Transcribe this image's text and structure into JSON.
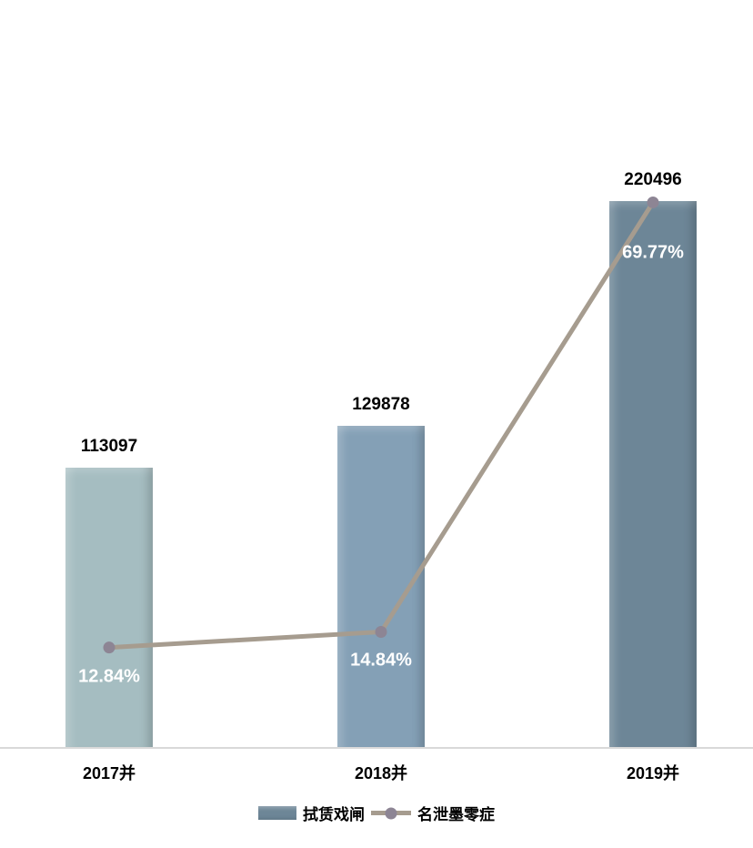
{
  "chart_data": {
    "type": "bar",
    "subtype": "bar-line-combo",
    "title": "",
    "xlabel": "",
    "ylabel": "",
    "categories": [
      "2017并",
      "2018并",
      "2019并"
    ],
    "series": [
      {
        "name": "拭赁戏闸",
        "type": "bar",
        "axis": "primary",
        "values": [
          113097,
          129878,
          220496
        ],
        "data_labels": [
          "113097",
          "129878",
          "220496"
        ],
        "bar_colors": [
          "#a5bdc1",
          "#84a0b6",
          "#6d8697"
        ]
      },
      {
        "name": "名泄墨零症",
        "type": "line",
        "axis": "secondary",
        "values_percent": [
          12.84,
          14.84,
          69.77
        ],
        "data_labels": [
          "12.84%",
          "14.84%",
          "69.77%"
        ],
        "line_color": "#a69c8f",
        "marker_color": "#8d8594"
      }
    ],
    "primary_ylim": [
      0,
      287000
    ],
    "secondary_ylim_percent": [
      0,
      91
    ],
    "grid": false,
    "value_axes_visible": false,
    "legend_position": "bottom",
    "axis_line_color": "#d9d9d9",
    "background_color": "#ffffff",
    "bar_value_label_color": "#000000",
    "line_label_color": "#ffffff",
    "x_label_color": "#000000"
  }
}
